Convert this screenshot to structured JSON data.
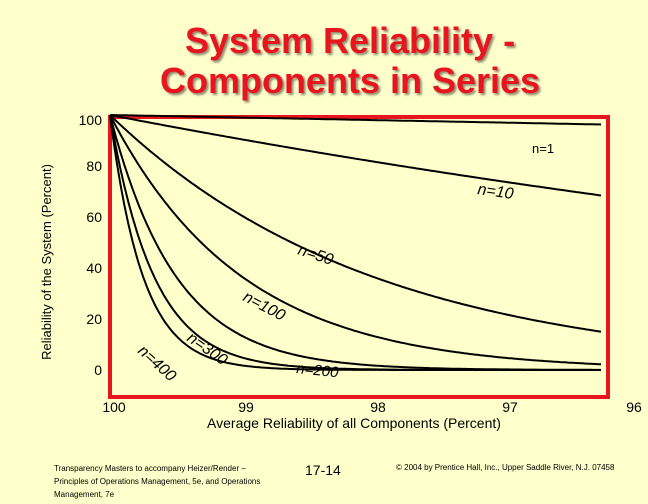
{
  "title_line1": "System Reliability -",
  "title_line2": "Components in Series",
  "colors": {
    "background": "#ffffcc",
    "title": "#e8141e",
    "frame": "#e8141e",
    "curves": "#000000"
  },
  "chart_data": {
    "type": "line",
    "xlabel": "Average Reliability of all Components (Percent)",
    "ylabel": "Reliability of the System (Percent)",
    "xlim": [
      100,
      96
    ],
    "ylim": [
      0,
      100
    ],
    "x_ticks": [
      "100",
      "99",
      "98",
      "97",
      "96"
    ],
    "y_ticks": [
      "100",
      "80",
      "60",
      "40",
      "20",
      "0"
    ],
    "grid": false,
    "series": [
      {
        "name": "n=1",
        "label": "n=1",
        "formula": "100*(r/100)^n",
        "n": 1
      },
      {
        "name": "n=10",
        "label": "n=10",
        "formula": "100*(r/100)^n",
        "n": 10
      },
      {
        "name": "n=50",
        "label": "n=50",
        "formula": "100*(r/100)^n",
        "n": 50
      },
      {
        "name": "n=100",
        "label": "n=100",
        "formula": "100*(r/100)^n",
        "n": 100
      },
      {
        "name": "n=200",
        "label": "n=200",
        "formula": "100*(r/100)^n",
        "n": 200
      },
      {
        "name": "n=300",
        "label": "n=300",
        "formula": "100*(r/100)^n",
        "n": 300
      },
      {
        "name": "n=400",
        "label": "n=400",
        "formula": "100*(r/100)^n",
        "n": 400
      }
    ]
  },
  "footer": {
    "left": "Transparency Masters to accompany Heizer/Render – Principles of Operations Management, 5e, and Operations Management, 7e",
    "page": "17-14",
    "right": "© 2004 by Prentice Hall, Inc., Upper Saddle River, N.J. 07458"
  }
}
